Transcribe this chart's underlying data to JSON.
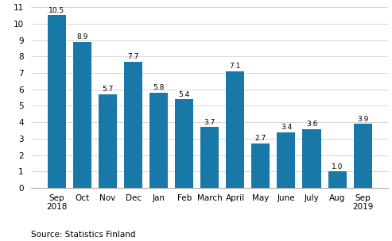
{
  "categories": [
    "Sep\n2018",
    "Oct",
    "Nov",
    "Dec",
    "Jan",
    "Feb",
    "March",
    "April",
    "May",
    "June",
    "July",
    "Aug",
    "Sep\n2019"
  ],
  "values": [
    10.5,
    8.9,
    5.7,
    7.7,
    5.8,
    5.4,
    3.7,
    7.1,
    2.7,
    3.4,
    3.6,
    1.0,
    3.9
  ],
  "bar_color": "#1878a8",
  "ylim": [
    0,
    11
  ],
  "yticks": [
    0,
    1,
    2,
    3,
    4,
    5,
    6,
    7,
    8,
    9,
    10,
    11
  ],
  "source_text": "Source: Statistics Finland",
  "tick_fontsize": 7.5,
  "source_fontsize": 7.5,
  "bar_label_fontsize": 6.5,
  "bar_width": 0.72
}
